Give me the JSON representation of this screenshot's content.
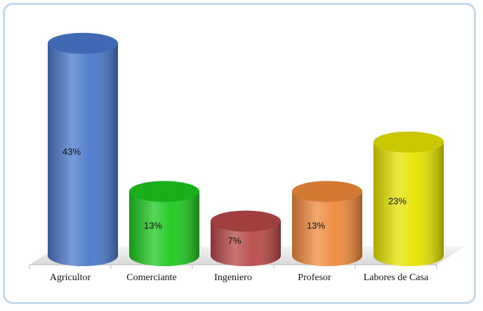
{
  "chart_data": {
    "type": "bar3d-cylinder",
    "categories": [
      "Agricultor",
      "Comerciante",
      "Ingeniero",
      "Profesor",
      "Labores de Casa"
    ],
    "values": [
      43,
      13,
      7,
      13,
      23
    ],
    "value_labels": [
      "43%",
      "13%",
      "7%",
      "13%",
      "23%"
    ],
    "colors": [
      "#4a78cc",
      "#1ec81e",
      "#b84848",
      "#f08a3c",
      "#e6e200"
    ]
  }
}
